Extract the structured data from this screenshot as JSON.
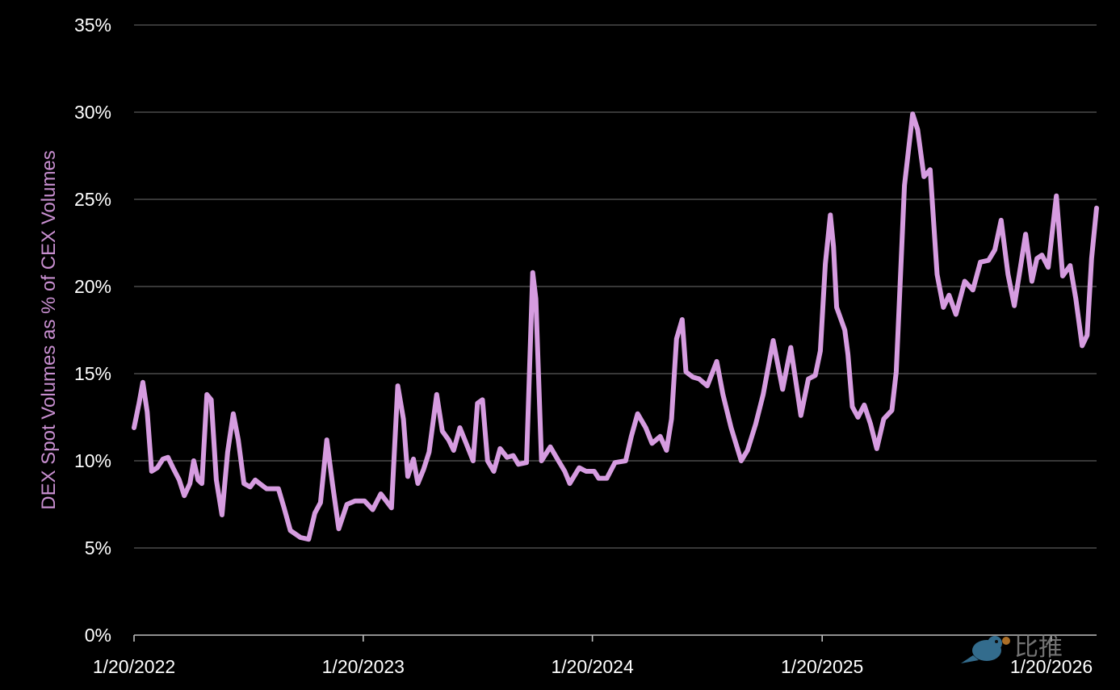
{
  "chart_data": {
    "type": "line",
    "title": "",
    "xlabel": "",
    "ylabel": "DEX Spot Volumes as % of CEX Volumes",
    "ylim": [
      0,
      35
    ],
    "y_ticks": [
      "0%",
      "5%",
      "10%",
      "15%",
      "20%",
      "25%",
      "30%",
      "35%"
    ],
    "y_tick_values": [
      0,
      5,
      10,
      15,
      20,
      25,
      30,
      35
    ],
    "x_ticks": [
      "1/20/2022",
      "1/20/2023",
      "1/20/2024",
      "1/20/2025",
      "1/20/2026"
    ],
    "x_tick_values": [
      "2022-01-20",
      "2023-01-20",
      "2024-01-20",
      "2025-01-20",
      "2026-01-20"
    ],
    "xlim": [
      "2022-01-20",
      "2026-04-02"
    ],
    "grid": true,
    "legend": "none",
    "colors": {
      "line": "#d69ce0",
      "ylabel": "#c88fd0",
      "background": "#000000",
      "grid": "#4a4a4a"
    },
    "series": [
      {
        "x": [
          "2022-01-20",
          "2022-01-28",
          "2022-02-03",
          "2022-02-10",
          "2022-02-17",
          "2022-02-26",
          "2022-03-07",
          "2022-03-15",
          "2022-03-23",
          "2022-04-02",
          "2022-04-10",
          "2022-04-19",
          "2022-04-25",
          "2022-05-02",
          "2022-05-08",
          "2022-05-16",
          "2022-05-23",
          "2022-05-31",
          "2022-06-09",
          "2022-06-18",
          "2022-06-27",
          "2022-07-05",
          "2022-07-14",
          "2022-07-24",
          "2022-08-01",
          "2022-08-08",
          "2022-08-19",
          "2022-09-07",
          "2022-09-16",
          "2022-09-26",
          "2022-10-12",
          "2022-10-25",
          "2022-11-04",
          "2022-11-13",
          "2022-11-23",
          "2022-12-02",
          "2022-12-12",
          "2022-12-25",
          "2023-01-07",
          "2023-01-22",
          "2023-02-04",
          "2023-02-17",
          "2023-03-06",
          "2023-03-16",
          "2023-03-25",
          "2023-04-01",
          "2023-04-10",
          "2023-04-17",
          "2023-04-26",
          "2023-05-05",
          "2023-05-17",
          "2023-05-26",
          "2023-06-05",
          "2023-06-13",
          "2023-06-23",
          "2023-07-03",
          "2023-07-14",
          "2023-07-21",
          "2023-07-29",
          "2023-08-06",
          "2023-08-16",
          "2023-08-26",
          "2023-09-06",
          "2023-09-16",
          "2023-09-24",
          "2023-10-07",
          "2023-10-17",
          "2023-10-22",
          "2023-10-31",
          "2023-11-14",
          "2023-11-27",
          "2023-12-07",
          "2023-12-15",
          "2023-12-30",
          "2024-01-10",
          "2024-01-23",
          "2024-01-30",
          "2024-02-12",
          "2024-02-25",
          "2024-03-13",
          "2024-03-22",
          "2024-04-01",
          "2024-04-14",
          "2024-04-24",
          "2024-05-07",
          "2024-05-17",
          "2024-05-25",
          "2024-06-02",
          "2024-06-11",
          "2024-06-17",
          "2024-06-28",
          "2024-07-08",
          "2024-07-21",
          "2024-08-05",
          "2024-08-15",
          "2024-08-28",
          "2024-09-13",
          "2024-09-23",
          "2024-10-06",
          "2024-10-18",
          "2024-11-03",
          "2024-11-18",
          "2024-12-01",
          "2024-12-17",
          "2024-12-29",
          "2025-01-09",
          "2025-01-17",
          "2025-01-25",
          "2025-02-02",
          "2025-02-07",
          "2025-02-12",
          "2025-02-25",
          "2025-03-02",
          "2025-03-09",
          "2025-03-18",
          "2025-03-28",
          "2025-04-07",
          "2025-04-17",
          "2025-04-28",
          "2025-05-11",
          "2025-05-18",
          "2025-05-31",
          "2025-06-13",
          "2025-06-21",
          "2025-07-01",
          "2025-07-11",
          "2025-07-22",
          "2025-08-01",
          "2025-08-10",
          "2025-08-21",
          "2025-09-04",
          "2025-09-17",
          "2025-09-29",
          "2025-10-12",
          "2025-10-22",
          "2025-11-01",
          "2025-11-12",
          "2025-11-22",
          "2025-11-30",
          "2025-12-10",
          "2025-12-20",
          "2025-12-28",
          "2026-01-05",
          "2026-01-15",
          "2026-01-28",
          "2026-02-07",
          "2026-02-19",
          "2026-02-28",
          "2026-03-10",
          "2026-03-18",
          "2026-03-25",
          "2026-04-02"
        ],
        "y": [
          11.9,
          13.3,
          14.5,
          12.8,
          9.4,
          9.6,
          10.1,
          10.2,
          9.6,
          8.9,
          8.0,
          8.7,
          10.0,
          8.9,
          8.7,
          13.8,
          13.5,
          8.9,
          6.9,
          10.5,
          12.7,
          11.2,
          8.7,
          8.5,
          8.9,
          8.7,
          8.4,
          8.4,
          7.3,
          6.0,
          5.6,
          5.5,
          7.0,
          7.6,
          11.2,
          8.7,
          6.1,
          7.5,
          7.7,
          7.7,
          7.2,
          8.1,
          7.3,
          14.3,
          12.4,
          9.1,
          10.1,
          8.7,
          9.5,
          10.5,
          13.8,
          11.7,
          11.2,
          10.6,
          11.9,
          11.0,
          10.0,
          13.3,
          13.5,
          10.0,
          9.4,
          10.7,
          10.2,
          10.3,
          9.8,
          9.9,
          20.8,
          19.3,
          10.0,
          10.8,
          10.0,
          9.4,
          8.7,
          9.6,
          9.4,
          9.4,
          9.0,
          9.0,
          9.9,
          10.0,
          11.4,
          12.7,
          11.9,
          11.0,
          11.4,
          10.6,
          12.4,
          17.0,
          18.1,
          15.1,
          14.8,
          14.7,
          14.3,
          15.7,
          13.8,
          11.9,
          10.0,
          10.6,
          12.1,
          13.8,
          16.9,
          14.1,
          16.5,
          12.6,
          14.7,
          14.9,
          16.3,
          21.3,
          24.1,
          22.3,
          18.8,
          17.5,
          16.1,
          13.1,
          12.5,
          13.2,
          12.1,
          10.7,
          12.4,
          12.9,
          15.1,
          25.8,
          29.9,
          29.0,
          26.3,
          26.7,
          20.7,
          18.8,
          19.5,
          18.4,
          20.3,
          19.8,
          21.4,
          21.5,
          22.1,
          23.8,
          20.7,
          18.9,
          20.7,
          23.0,
          20.3,
          21.6,
          21.8,
          21.1,
          25.2,
          20.6,
          21.2,
          19.3,
          16.6,
          17.2,
          21.6,
          24.5
        ]
      }
    ]
  },
  "watermark": {
    "logo_text": "比推",
    "icon": "bird-bitcoin-logo"
  }
}
